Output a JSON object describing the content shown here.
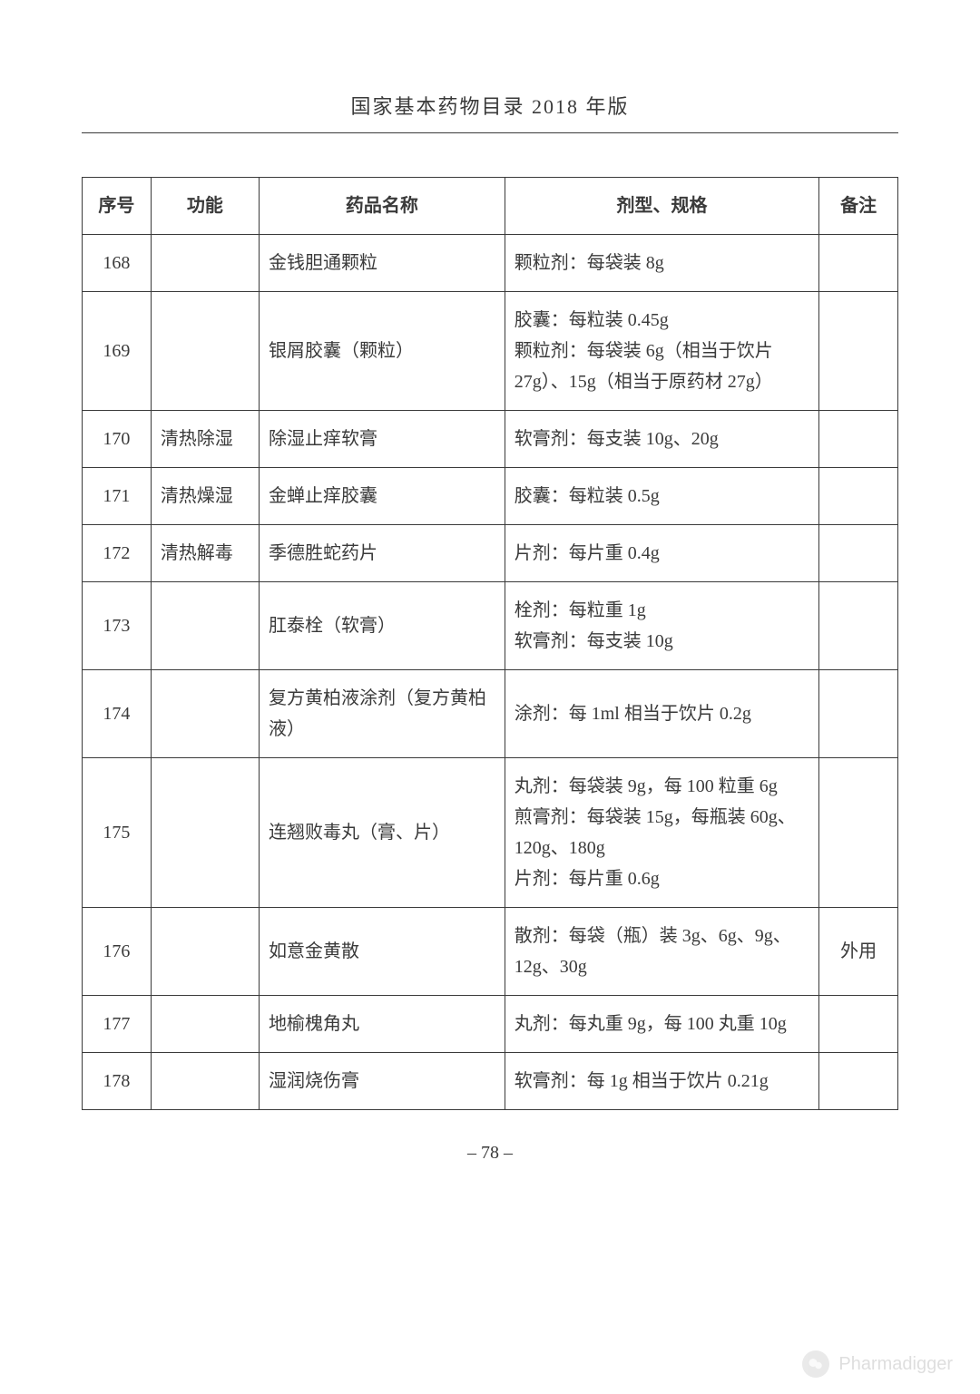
{
  "header": {
    "title": "国家基本药物目录  2018 年版"
  },
  "table": {
    "columns": [
      "序号",
      "功能",
      "药品名称",
      "剂型、规格",
      "备注"
    ],
    "rows": [
      {
        "seq": "168",
        "func": "",
        "name": "金钱胆通颗粒",
        "spec": "颗粒剂：每袋装 8g",
        "note": ""
      },
      {
        "seq": "169",
        "func": "",
        "name": "银屑胶囊（颗粒）",
        "spec": "胶囊：每粒装 0.45g\n颗粒剂：每袋装 6g（相当于饮片 27g）、15g（相当于原药材 27g）",
        "note": ""
      },
      {
        "seq": "170",
        "func": "清热除湿",
        "name": "除湿止痒软膏",
        "spec": "软膏剂：每支装 10g、20g",
        "note": ""
      },
      {
        "seq": "171",
        "func": "清热燥湿",
        "name": "金蝉止痒胶囊",
        "spec": "胶囊：每粒装 0.5g",
        "note": ""
      },
      {
        "seq": "172",
        "func": "清热解毒",
        "name": "季德胜蛇药片",
        "spec": "片剂：每片重 0.4g",
        "note": ""
      },
      {
        "seq": "173",
        "func": "",
        "name": "肛泰栓（软膏）",
        "spec": "栓剂：每粒重 1g\n软膏剂：每支装 10g",
        "note": ""
      },
      {
        "seq": "174",
        "func": "",
        "name": "复方黄柏液涂剂（复方黄柏液）",
        "spec": "涂剂：每 1ml 相当于饮片 0.2g",
        "note": ""
      },
      {
        "seq": "175",
        "func": "",
        "name": "连翘败毒丸（膏、片）",
        "spec": "丸剂：每袋装 9g，每 100 粒重 6g\n煎膏剂：每袋装 15g，每瓶装 60g、120g、180g\n片剂：每片重 0.6g",
        "note": ""
      },
      {
        "seq": "176",
        "func": "",
        "name": "如意金黄散",
        "spec": "散剂：每袋（瓶）装 3g、6g、9g、12g、30g",
        "note": "外用"
      },
      {
        "seq": "177",
        "func": "",
        "name": "地榆槐角丸",
        "spec": "丸剂：每丸重 9g，每 100 丸重 10g",
        "note": ""
      },
      {
        "seq": "178",
        "func": "",
        "name": "湿润烧伤膏",
        "spec": "软膏剂：每 1g 相当于饮片 0.21g",
        "note": ""
      }
    ]
  },
  "pageNumber": "– 78 –",
  "watermark": {
    "label": "Pharmadigger"
  }
}
